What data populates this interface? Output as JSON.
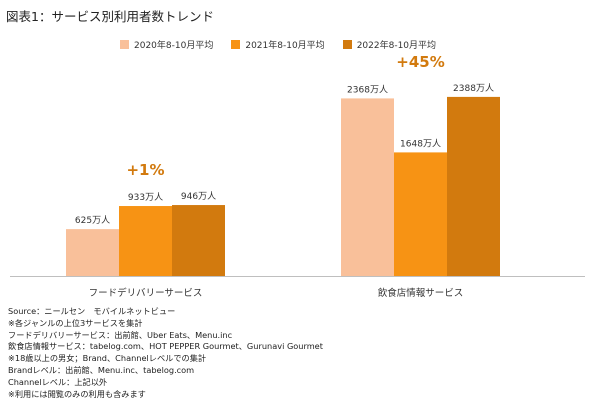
{
  "title": "図表1：サービス別利用者数トレンド",
  "chart_data": {
    "type": "bar",
    "categories": [
      "フードデリバリーサービス",
      "飲食店情報サービス"
    ],
    "series": [
      {
        "name": "2020年8-10月平均",
        "values": [
          625,
          2368
        ],
        "labels": [
          "625万人",
          "2368万人"
        ],
        "color": "#F9C09A"
      },
      {
        "name": "2021年8-10月平均",
        "values": [
          933,
          1648
        ],
        "labels": [
          "933万人",
          "1648万人"
        ],
        "color": "#F79314"
      },
      {
        "name": "2022年8-10月平均",
        "values": [
          946,
          2388
        ],
        "labels": [
          "946万人",
          "2388万人"
        ],
        "color": "#D27A0E"
      }
    ],
    "growth_labels": [
      "+1%",
      "+45%"
    ],
    "growth_color": "#D27A0E",
    "ylim": [
      0,
      2800
    ],
    "legend_position": "top",
    "grid": false
  },
  "notes": [
    "Source：ニールセン　モバイルネットビュー",
    "※各ジャンルの上位3サービスを集計",
    "フードデリバリーサービス：出前館、Uber Eats、Menu.inc",
    "飲食店情報サービス：tabelog.com、HOT PEPPER Gourmet、Gurunavi Gourmet",
    "※18歳以上の男女；Brand、Channelレベルでの集計",
    "Brandレベル：出前館、Menu.inc、tabelog.com",
    "Channelレベル：上記以外",
    "※利用には閲覧のみの利用も含みます"
  ]
}
